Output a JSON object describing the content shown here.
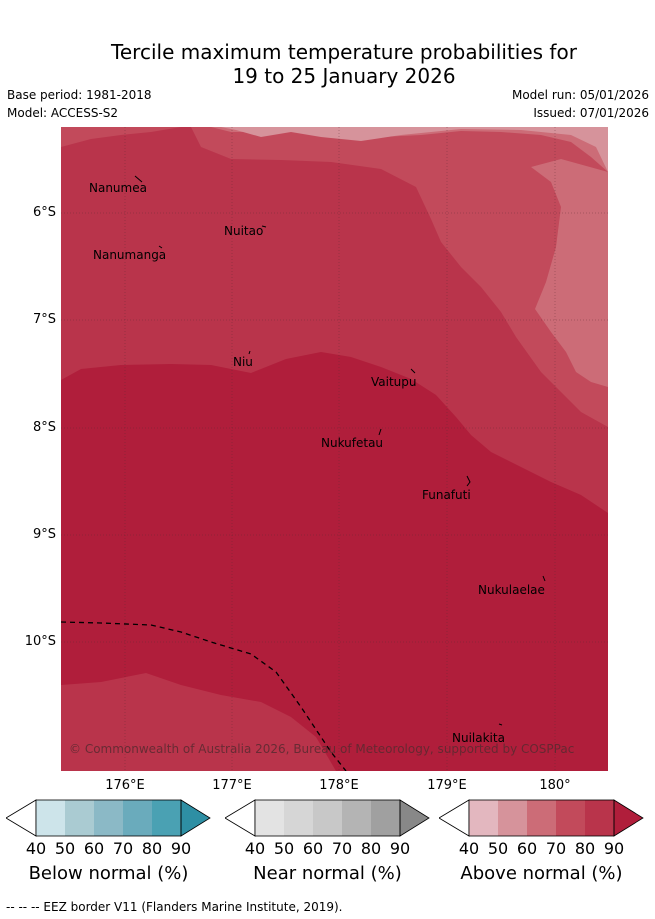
{
  "title": {
    "line1": "Tercile maximum temperature probabilities for",
    "line2": "19 to 25 January 2026"
  },
  "meta": {
    "base_period": "Base period: 1981-2018",
    "model": "Model: ACCESS-S2",
    "model_run": "Model run: 05/01/2026",
    "issued": "Issued: 07/01/2026"
  },
  "map": {
    "lat_ticks": [
      "6°S",
      "7°S",
      "8°S",
      "9°S",
      "10°S"
    ],
    "lon_ticks": [
      "176°E",
      "177°E",
      "178°E",
      "179°E",
      "180°"
    ],
    "places": [
      "Nanumea",
      "Nuitao",
      "Nanumanga",
      "Niu",
      "Vaitupu",
      "Nukufetau",
      "Funafuti",
      "Nukulaelae",
      "Nuilakita"
    ],
    "copyright": "© Commonwealth of Australia 2026, Bureau of Meteorology, supported by COSPPac",
    "colors": {
      "above_40": "#e3b7bf",
      "above_50": "#d6939b",
      "above_60": "#cc6c77",
      "above_70": "#c24a5b",
      "above_80": "#b9344b",
      "above_90": "#b01e3b"
    }
  },
  "legends": [
    {
      "label": "Below normal (%)",
      "ticks": [
        "40",
        "50",
        "60",
        "70",
        "80",
        "90"
      ],
      "colors": [
        "#cde4ea",
        "#aacbd2",
        "#8bb9c6",
        "#6aabbc",
        "#4aa1b3",
        "#2e8fa4"
      ]
    },
    {
      "label": "Near normal (%)",
      "ticks": [
        "40",
        "50",
        "60",
        "70",
        "80",
        "90"
      ],
      "colors": [
        "#e3e3e3",
        "#d6d6d6",
        "#c8c8c8",
        "#b4b4b4",
        "#a0a0a0",
        "#888888"
      ]
    },
    {
      "label": "Above normal (%)",
      "ticks": [
        "40",
        "50",
        "60",
        "70",
        "80",
        "90"
      ],
      "colors": [
        "#e3b7bf",
        "#d6939b",
        "#cc6c77",
        "#c24a5b",
        "#b9344b",
        "#b01e3b"
      ]
    }
  ],
  "footer": "--  --  -- EEZ border V11 (Flanders Marine Institute, 2019)."
}
